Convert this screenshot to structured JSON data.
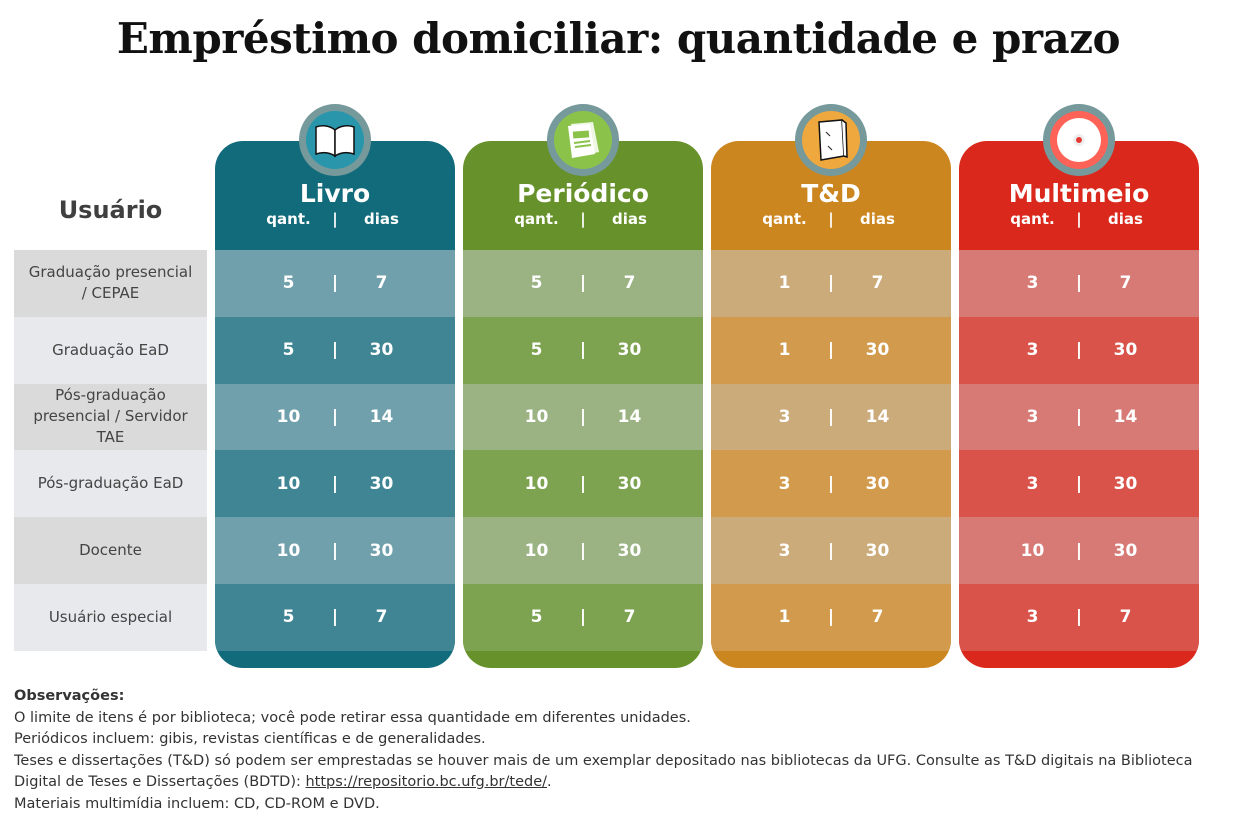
{
  "title": "Empréstimo domiciliar: quantidade e prazo",
  "user_header": "Usuário",
  "users": [
    "Graduação presencial / CEPAE",
    "Graduação EaD",
    "Pós-graduação presencial / Servidor TAE",
    "Pós-graduação EaD",
    "Docente",
    "Usuário especial"
  ],
  "columns": [
    {
      "name": "Livro",
      "icon": "open-book-icon",
      "qty_label": "qant.",
      "sep": "|",
      "days_label": "dias",
      "colors": {
        "header": "#126b7b",
        "light": "#70a0ac",
        "dark": "#3f8594",
        "icon": "#2996ac"
      },
      "rows": [
        [
          "5",
          "7"
        ],
        [
          "5",
          "30"
        ],
        [
          "10",
          "14"
        ],
        [
          "10",
          "30"
        ],
        [
          "10",
          "30"
        ],
        [
          "5",
          "7"
        ]
      ]
    },
    {
      "name": "Periódico",
      "icon": "magazine-icon",
      "qty_label": "qant.",
      "sep": "|",
      "days_label": "dias",
      "colors": {
        "header": "#67922b",
        "light": "#9bb383",
        "dark": "#7da351",
        "icon": "#8bc34a"
      },
      "rows": [
        [
          "5",
          "7"
        ],
        [
          "5",
          "30"
        ],
        [
          "10",
          "14"
        ],
        [
          "10",
          "30"
        ],
        [
          "10",
          "30"
        ],
        [
          "5",
          "7"
        ]
      ]
    },
    {
      "name": "T&D",
      "icon": "thesis-book-icon",
      "qty_label": "qant.",
      "sep": "|",
      "days_label": "dias",
      "colors": {
        "header": "#cc8620",
        "light": "#ccab7b",
        "dark": "#d19a4c",
        "icon": "#efa83e"
      },
      "rows": [
        [
          "1",
          "7"
        ],
        [
          "1",
          "30"
        ],
        [
          "3",
          "14"
        ],
        [
          "3",
          "30"
        ],
        [
          "3",
          "30"
        ],
        [
          "1",
          "7"
        ]
      ]
    },
    {
      "name": "Multimeio",
      "icon": "cd-disc-icon",
      "qty_label": "qant.",
      "sep": "|",
      "days_label": "dias",
      "colors": {
        "header": "#da291c",
        "light": "#d77a76",
        "dark": "#d9534a",
        "icon": "#ff6257"
      },
      "rows": [
        [
          "3",
          "7"
        ],
        [
          "3",
          "30"
        ],
        [
          "3",
          "14"
        ],
        [
          "3",
          "30"
        ],
        [
          "10",
          "30"
        ],
        [
          "3",
          "7"
        ]
      ]
    }
  ],
  "notes": {
    "heading": "Observações:",
    "line1": "O limite de itens é por biblioteca; você pode retirar essa quantidade em diferentes unidades.",
    "line2": "Periódicos incluem: gibis, revistas científicas e de generalidades.",
    "line3": "Teses e dissertações (T&D) só podem ser emprestadas se houver mais de um exemplar depositado nas bibliotecas da UFG. Consulte as T&D digitais na Biblioteca Digital de Teses e Dissertações (BDTD): ",
    "link": "https://repositorio.bc.ufg.br/tede/",
    "line3_end": ".",
    "line4": "Materiais multimídia incluem: CD, CD-ROM e DVD."
  }
}
